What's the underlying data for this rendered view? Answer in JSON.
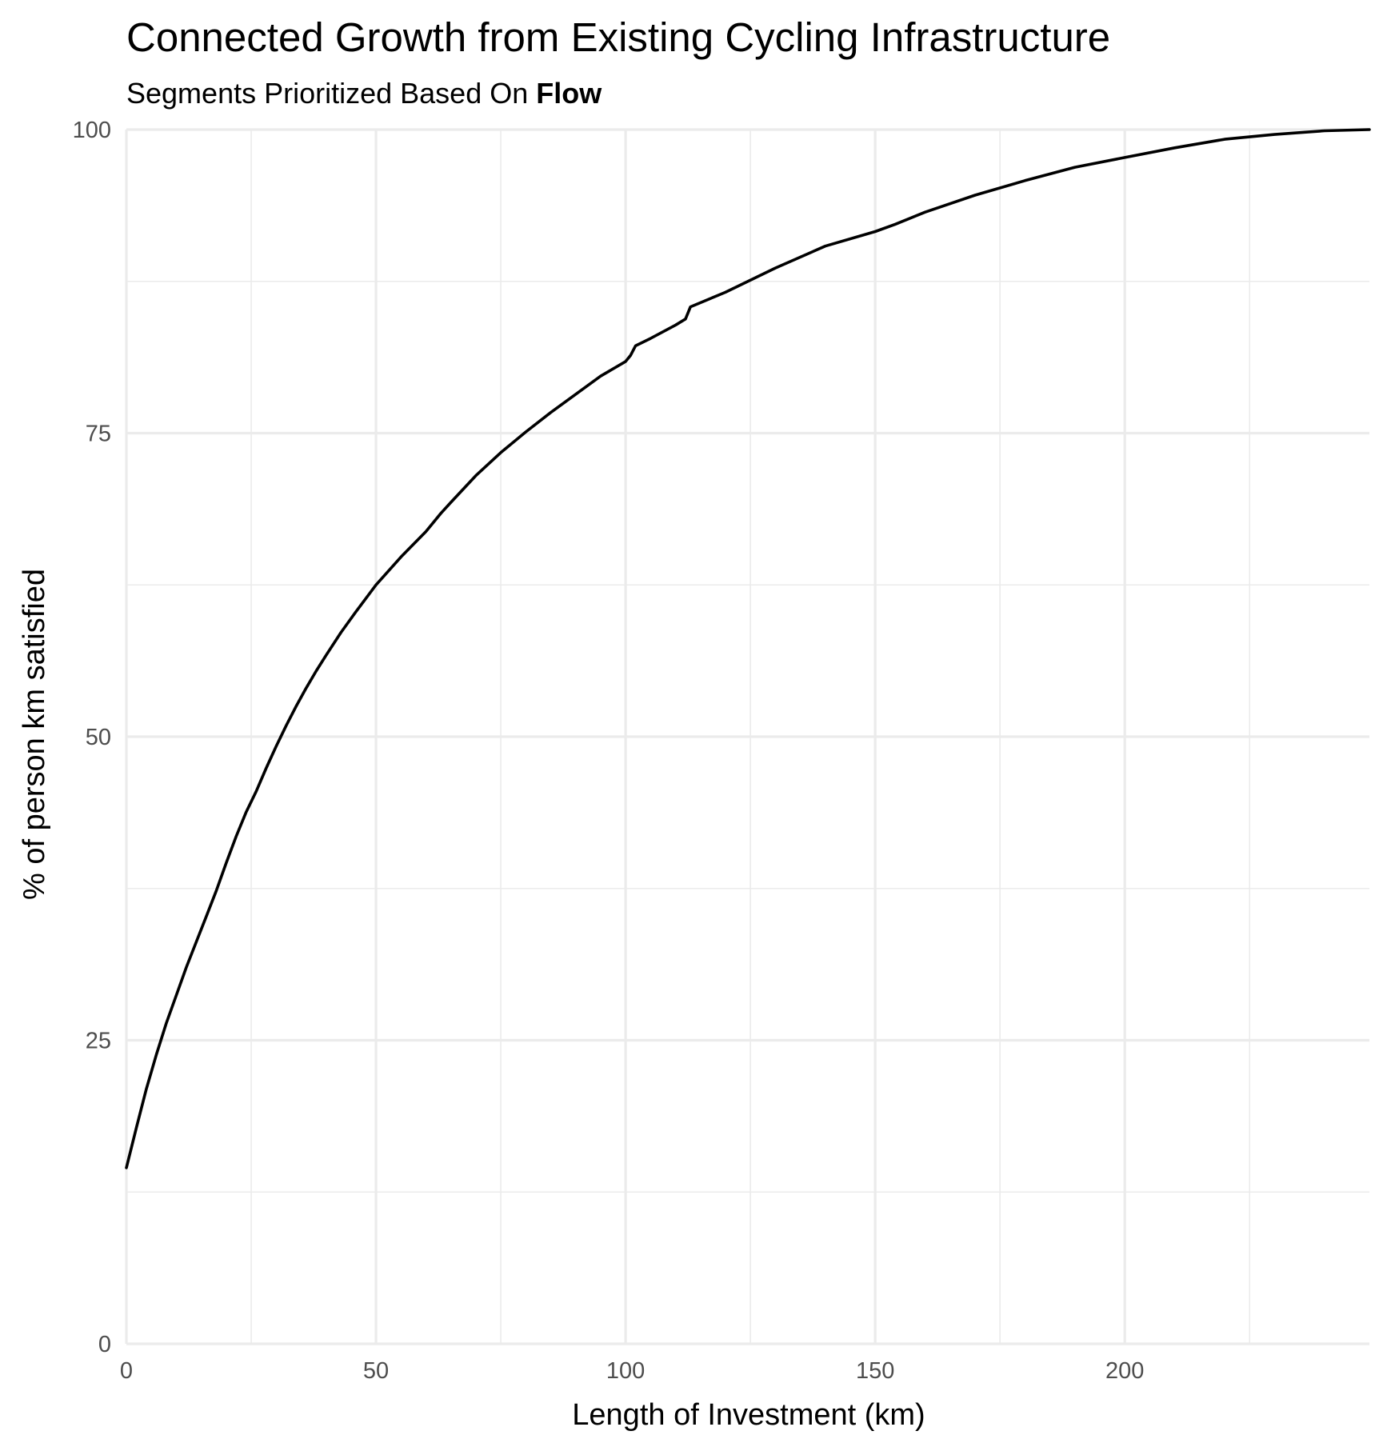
{
  "chart_data": {
    "type": "line",
    "title": "Connected Growth from Existing Cycling Infrastructure",
    "subtitle_prefix": "Segments Prioritized Based On ",
    "subtitle_emphasis": "Flow",
    "xlabel": "Length of Investment (km)",
    "ylabel": "% of person km satisfied",
    "xlim": [
      0,
      249
    ],
    "ylim": [
      0,
      100
    ],
    "x_ticks": [
      0,
      50,
      100,
      150,
      200
    ],
    "x_tick_labels": [
      "0",
      "50",
      "100",
      "150",
      "200"
    ],
    "y_ticks": [
      0,
      25,
      50,
      75,
      100
    ],
    "y_tick_labels": [
      "0",
      "25",
      "50",
      "75",
      "100"
    ],
    "x_minor_ticks": [
      25,
      75,
      125,
      175,
      225
    ],
    "y_minor_ticks": [
      12.5,
      37.5,
      62.5,
      87.5
    ],
    "grid": true,
    "line_color": "#000000",
    "series": [
      {
        "x": [
          0,
          2,
          4,
          6,
          8,
          10,
          12,
          14,
          16,
          18,
          20,
          22,
          24,
          26,
          28,
          30,
          32,
          34,
          36,
          38,
          40,
          43,
          46,
          50,
          55,
          60,
          63,
          65,
          70,
          75,
          80,
          85,
          90,
          95,
          100,
          101,
          102,
          105,
          110,
          112,
          113,
          120,
          130,
          140,
          150,
          154,
          160,
          170,
          180,
          190,
          200,
          210,
          220,
          230,
          240,
          249
        ],
        "y": [
          14.5,
          17.8,
          21,
          23.8,
          26.4,
          28.7,
          31,
          33.1,
          35.2,
          37.3,
          39.6,
          41.8,
          43.8,
          45.5,
          47.4,
          49.2,
          50.9,
          52.5,
          54,
          55.4,
          56.7,
          58.6,
          60.3,
          62.5,
          64.8,
          66.9,
          68.4,
          69.3,
          71.5,
          73.4,
          75.1,
          76.7,
          78.2,
          79.7,
          80.9,
          81.4,
          82.2,
          82.8,
          83.9,
          84.4,
          85.4,
          86.6,
          88.6,
          90.4,
          91.6,
          92.2,
          93.2,
          94.6,
          95.8,
          96.9,
          97.7,
          98.5,
          99.2,
          99.6,
          99.9,
          100
        ]
      }
    ]
  }
}
